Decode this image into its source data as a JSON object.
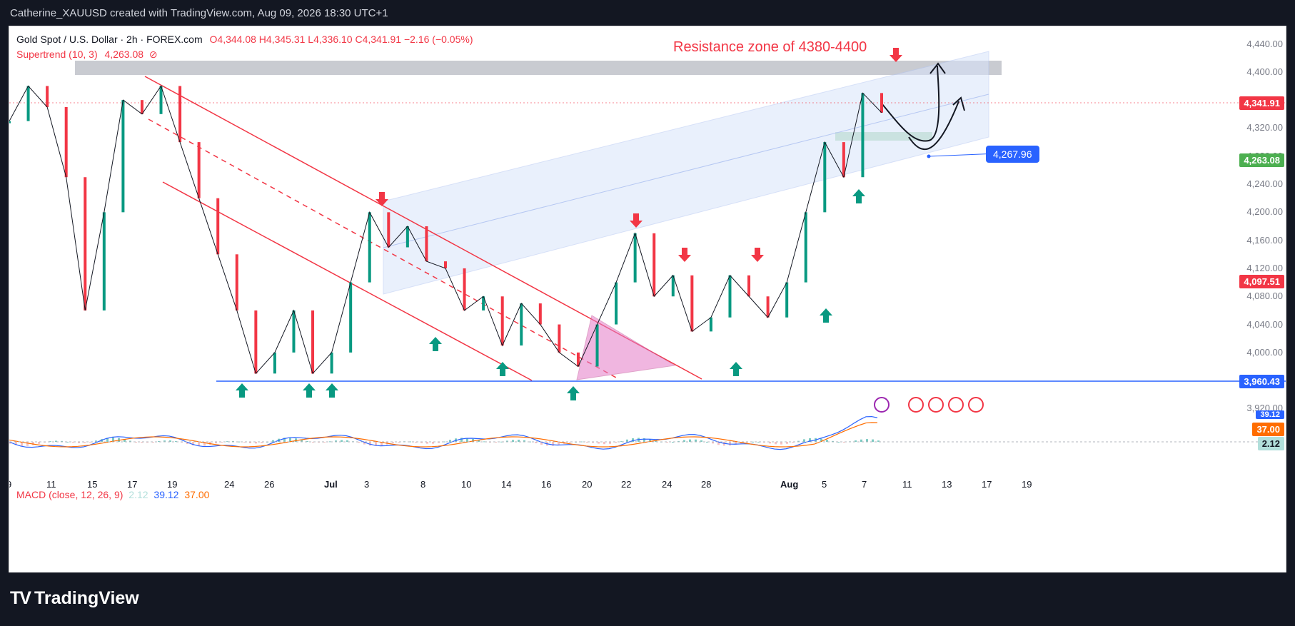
{
  "header": {
    "caption": "Catherine_XAUUSD created with TradingView.com, Aug 09, 2026 18:30 UTC+1"
  },
  "legend": {
    "symbol": "Gold Spot / U.S. Dollar · 2h · FOREX.com",
    "ohlc": "O4,344.08 H4,345.31 L4,336.10 C4,341.91 −2.16 (−0.05%)",
    "supertrend_label": "Supertrend (10, 3)",
    "supertrend_value": "4,263.08",
    "supertrend_icon": "hidden-eye-slash-icon"
  },
  "annotation": {
    "resistance_text": "Resistance zone of 4380-4400"
  },
  "macd": {
    "label": "MACD (close, 12, 26, 9)",
    "hist": "2.12",
    "macd": "39.12",
    "signal": "37.00"
  },
  "price_badges": {
    "last": "4,341.91",
    "projection": "4,267.96",
    "supertrend": "4,263.08",
    "prev": "4,097.51",
    "support": "3,960.43",
    "macd_top": "39.12",
    "macd_signal": "37.00",
    "macd_hist": "2.12"
  },
  "colors": {
    "up": "#089981",
    "down": "#f23645",
    "resistance_fill": "#b2b5be",
    "support_line": "#2962ff",
    "channel_fill": "#e3ecfc",
    "triangle_fill": "#e47cc8"
  },
  "chart_data": {
    "type": "line",
    "title": "Gold Spot / U.S. Dollar · 2h · FOREX.com",
    "y_ticks": [
      3920,
      4000,
      4040,
      4080,
      4120,
      4160,
      4200,
      4240,
      4280,
      4320,
      4360,
      4400,
      4440
    ],
    "y_tick_labels": [
      "3,920.00",
      "4,000.00",
      "4,040.00",
      "4,080.00",
      "4,120.00",
      "4,160.00",
      "4,200.00",
      "4,240.00",
      "4,280.00",
      "4,320.00",
      "4,360.00",
      "4,400.00",
      "4,440.00"
    ],
    "ylim": [
      3895,
      4465
    ],
    "x_ticks": [
      "9",
      "11",
      "15",
      "17",
      "19",
      "24",
      "26",
      "Jul",
      "3",
      "8",
      "10",
      "14",
      "16",
      "20",
      "22",
      "24",
      "28",
      "Aug",
      "5",
      "7",
      "11",
      "13",
      "17",
      "19"
    ],
    "series": [
      {
        "name": "",
        "values": [
          4330,
          4380,
          4350,
          4250,
          4060,
          4200,
          4360,
          4340,
          4380,
          4300,
          4220,
          4140,
          4060,
          3970,
          4000,
          4060,
          3970,
          4000,
          4100,
          4200,
          4150,
          4180,
          4130,
          4120,
          4060,
          4080,
          4010,
          4070,
          4040,
          4000,
          3980,
          4040,
          4100,
          4170,
          4080,
          4110,
          4030,
          4050,
          4110,
          4080,
          4050,
          4100,
          4200,
          4300,
          4250,
          4370,
          4342
        ]
      }
    ],
    "annotations": {
      "resistance_zone": [
        4380,
        4400
      ],
      "support": 3960.43,
      "projection_target": 4267.96,
      "last_close": 4341.91,
      "supertrend": 4263.08
    }
  }
}
